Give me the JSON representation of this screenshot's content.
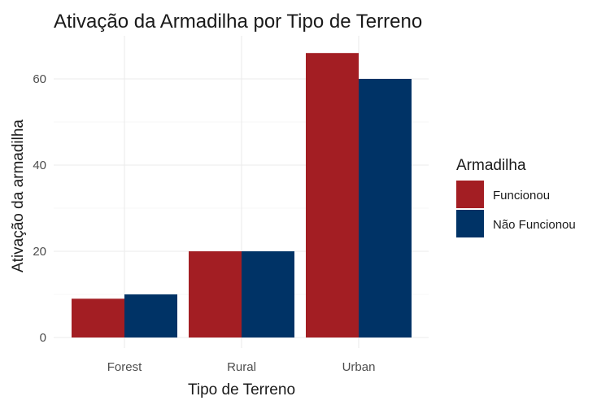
{
  "chart_data": {
    "type": "bar",
    "title": "Ativação da Armadilha por Tipo de Terreno",
    "xlabel": "Tipo de Terreno",
    "ylabel": "Ativação da armadilha",
    "categories": [
      "Forest",
      "Rural",
      "Urban"
    ],
    "series": [
      {
        "name": "Funcionou",
        "color": "#A31E23",
        "values": [
          9,
          20,
          66
        ]
      },
      {
        "name": "Não Funcionou",
        "color": "#003366",
        "values": [
          10,
          20,
          60
        ]
      }
    ],
    "ylim": [
      0,
      66
    ],
    "yticks": [
      0,
      20,
      40,
      60
    ],
    "grid": true,
    "legend": {
      "title": "Armadilha",
      "placement": "right"
    }
  }
}
